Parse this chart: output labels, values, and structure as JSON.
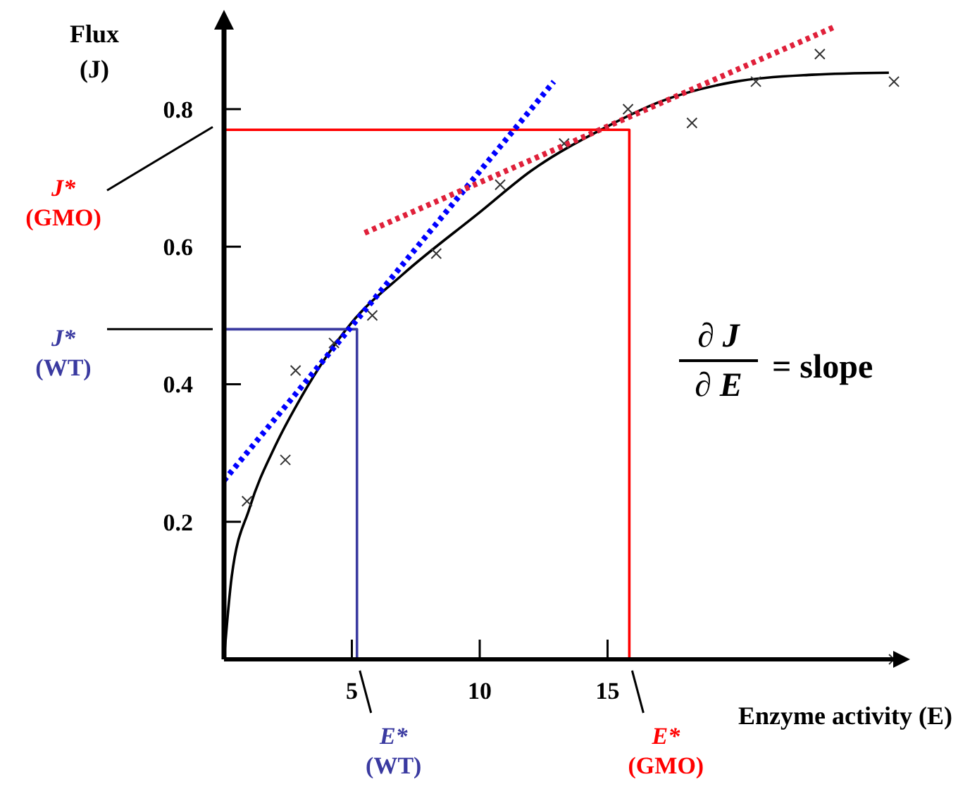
{
  "chart_data": {
    "type": "scatter",
    "xlabel": "Enzyme activity (E)",
    "ylabel": "Flux\n(J)",
    "xlim": [
      0,
      26.5
    ],
    "ylim": [
      0,
      0.93
    ],
    "xticks": [
      5,
      10,
      15
    ],
    "yticks": [
      0.2,
      0.4,
      0.6,
      0.8
    ],
    "series": [
      {
        "type": "line",
        "color": "#000000",
        "x": [
          0,
          0.3,
          1,
          2,
          3,
          5,
          7,
          10,
          12,
          15,
          17,
          20,
          23,
          26
        ],
        "values": [
          0,
          0.12,
          0.22,
          0.31,
          0.38,
          0.49,
          0.56,
          0.65,
          0.71,
          0.775,
          0.81,
          0.84,
          0.85,
          0.853
        ]
      },
      {
        "marker": "cross",
        "color": "#333333",
        "x": [
          0.9,
          2.4,
          2.8,
          4.3,
          5.8,
          8.3,
          10.8,
          13.3,
          15.8,
          18.3,
          20.8,
          23.3,
          26.2,
          26.2
        ],
        "values": [
          0.23,
          0.29,
          0.42,
          0.46,
          0.5,
          0.59,
          0.69,
          0.75,
          0.8,
          0.78,
          0.84,
          0.88,
          0.84,
          0
        ]
      },
      {
        "type": "line",
        "color": "#3a3aa0",
        "x": [
          0,
          5.2,
          5.2
        ],
        "values": [
          0.48,
          0.48,
          0
        ]
      },
      {
        "type": "line",
        "color": "#ff0000",
        "x": [
          0,
          15.85,
          15.85
        ],
        "values": [
          0.77,
          0.77,
          0
        ]
      },
      {
        "type": "line",
        "color": "#0000ff",
        "line_style": "dotted",
        "x": [
          0,
          12.9
        ],
        "values": [
          0.26,
          0.84
        ]
      },
      {
        "type": "line",
        "color": "#e0203a",
        "line_style": "dotted",
        "x": [
          5.5,
          23.9
        ],
        "values": [
          0.62,
          0.92
        ]
      }
    ],
    "annotations": [
      "J*\n(GMO)",
      "J*\n(WT)",
      "E*\n(WT)",
      "E*\n(GMO)",
      "∂ J",
      "∂ E",
      "= slope"
    ]
  }
}
